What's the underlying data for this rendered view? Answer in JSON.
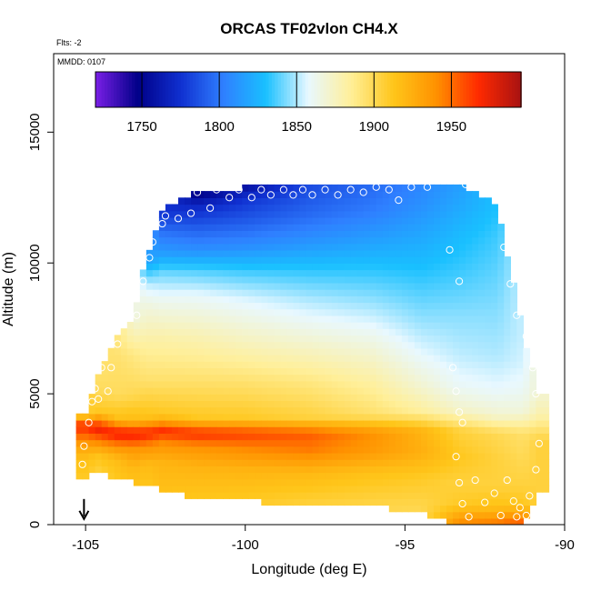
{
  "chart_data": {
    "type": "heatmap",
    "title": "ORCAS TF02vlon CH4.X",
    "xlabel": "Longitude (deg E)",
    "ylabel": "Altitude (m)",
    "xlim": [
      -106,
      -90
    ],
    "ylim": [
      0,
      18000
    ],
    "x_ticks": [
      -105,
      -100,
      -95,
      -90
    ],
    "y_ticks": [
      0,
      5000,
      10000,
      15000
    ],
    "annotations": {
      "flts": "Flts: -2",
      "mmdd": "MMDD: 0107"
    },
    "colorbar": {
      "min": 1720,
      "max": 1995,
      "ticks": [
        1750,
        1800,
        1850,
        1900,
        1950
      ],
      "colors": [
        "#7a1fe6",
        "#000088",
        "#1030d0",
        "#2f7fff",
        "#19c0ff",
        "#e8f8ff",
        "#ffef99",
        "#ffc61a",
        "#ff9200",
        "#ff2a00",
        "#a81212"
      ]
    },
    "grid": false,
    "marker_position": {
      "longitude": -105.05,
      "altitude": 250
    },
    "profile_columns": [
      {
        "lon": -105.0,
        "bottom": 1800,
        "top": 4200,
        "levels": [
          [
            1800,
            1910
          ],
          [
            2500,
            1915
          ],
          [
            3000,
            1930
          ],
          [
            3800,
            1970
          ],
          [
            4200,
            1908
          ]
        ]
      },
      {
        "lon": -104.6,
        "bottom": 2000,
        "top": 5800,
        "levels": [
          [
            2000,
            1905
          ],
          [
            2700,
            1915
          ],
          [
            3200,
            1945
          ],
          [
            3700,
            1975
          ],
          [
            4300,
            1912
          ],
          [
            5200,
            1898
          ],
          [
            5800,
            1895
          ]
        ]
      },
      {
        "lon": -104.0,
        "bottom": 1800,
        "top": 7200,
        "levels": [
          [
            1800,
            1912
          ],
          [
            2500,
            1918
          ],
          [
            3000,
            1940
          ],
          [
            3500,
            1976
          ],
          [
            4100,
            1915
          ],
          [
            5000,
            1898
          ],
          [
            6200,
            1895
          ],
          [
            7200,
            1890
          ]
        ]
      },
      {
        "lon": -103.5,
        "bottom": 1600,
        "top": 8000,
        "levels": [
          [
            1600,
            1915
          ],
          [
            2200,
            1920
          ],
          [
            2900,
            1938
          ],
          [
            3500,
            1975
          ],
          [
            4000,
            1918
          ],
          [
            5000,
            1900
          ],
          [
            6500,
            1890
          ],
          [
            7600,
            1872
          ],
          [
            8000,
            1865
          ]
        ]
      },
      {
        "lon": -103.1,
        "bottom": 1500,
        "top": 10200,
        "levels": [
          [
            1500,
            1912
          ],
          [
            2300,
            1918
          ],
          [
            3000,
            1940
          ],
          [
            3500,
            1972
          ],
          [
            4100,
            1915
          ],
          [
            5500,
            1895
          ],
          [
            7000,
            1882
          ],
          [
            8500,
            1865
          ],
          [
            9200,
            1852
          ],
          [
            10000,
            1820
          ],
          [
            10200,
            1815
          ]
        ]
      },
      {
        "lon": -102.6,
        "bottom": 1300,
        "top": 12000,
        "levels": [
          [
            1300,
            1915
          ],
          [
            2400,
            1922
          ],
          [
            3100,
            1940
          ],
          [
            3600,
            1968
          ],
          [
            4200,
            1912
          ],
          [
            5500,
            1895
          ],
          [
            7200,
            1880
          ],
          [
            8700,
            1860
          ],
          [
            9600,
            1842
          ],
          [
            10400,
            1815
          ],
          [
            11200,
            1798
          ],
          [
            12000,
            1775
          ]
        ]
      },
      {
        "lon": -101.5,
        "bottom": 1000,
        "top": 12700,
        "levels": [
          [
            1000,
            1912
          ],
          [
            2200,
            1922
          ],
          [
            3000,
            1940
          ],
          [
            3500,
            1968
          ],
          [
            4100,
            1911
          ],
          [
            5500,
            1895
          ],
          [
            7200,
            1878
          ],
          [
            8800,
            1858
          ],
          [
            9700,
            1838
          ],
          [
            10500,
            1810
          ],
          [
            11400,
            1790
          ],
          [
            12200,
            1770
          ],
          [
            12700,
            1745
          ]
        ]
      },
      {
        "lon": -100.0,
        "bottom": 900,
        "top": 12900,
        "levels": [
          [
            900,
            1910
          ],
          [
            2100,
            1922
          ],
          [
            2900,
            1942
          ],
          [
            3500,
            1962
          ],
          [
            4100,
            1910
          ],
          [
            5500,
            1894
          ],
          [
            7000,
            1875
          ],
          [
            8700,
            1855
          ],
          [
            9700,
            1835
          ],
          [
            10600,
            1810
          ],
          [
            11600,
            1790
          ],
          [
            12500,
            1775
          ],
          [
            12900,
            1758
          ]
        ]
      },
      {
        "lon": -98.0,
        "bottom": 800,
        "top": 12900,
        "levels": [
          [
            800,
            1905
          ],
          [
            2000,
            1920
          ],
          [
            2800,
            1945
          ],
          [
            3500,
            1955
          ],
          [
            4100,
            1905
          ],
          [
            5500,
            1890
          ],
          [
            7000,
            1870
          ],
          [
            8600,
            1850
          ],
          [
            9800,
            1832
          ],
          [
            10800,
            1812
          ],
          [
            11800,
            1796
          ],
          [
            12900,
            1785
          ]
        ]
      },
      {
        "lon": -96.0,
        "bottom": 700,
        "top": 13000,
        "levels": [
          [
            700,
            1902
          ],
          [
            2000,
            1915
          ],
          [
            2800,
            1935
          ],
          [
            3500,
            1940
          ],
          [
            4200,
            1895
          ],
          [
            5500,
            1882
          ],
          [
            7000,
            1865
          ],
          [
            8500,
            1847
          ],
          [
            9800,
            1832
          ],
          [
            11000,
            1815
          ],
          [
            12000,
            1802
          ],
          [
            13000,
            1795
          ]
        ]
      },
      {
        "lon": -94.5,
        "bottom": 500,
        "top": 13100,
        "levels": [
          [
            500,
            1900
          ],
          [
            1800,
            1910
          ],
          [
            2800,
            1925
          ],
          [
            3600,
            1922
          ],
          [
            4300,
            1885
          ],
          [
            5300,
            1870
          ],
          [
            6500,
            1858
          ],
          [
            8000,
            1845
          ],
          [
            9600,
            1832
          ],
          [
            11000,
            1820
          ],
          [
            12200,
            1810
          ],
          [
            13100,
            1805
          ]
        ]
      },
      {
        "lon": -93.3,
        "bottom": 0,
        "top": 13100,
        "levels": [
          [
            0,
            1945
          ],
          [
            800,
            1910
          ],
          [
            1600,
            1905
          ],
          [
            2600,
            1912
          ],
          [
            3600,
            1905
          ],
          [
            4400,
            1872
          ],
          [
            5300,
            1860
          ],
          [
            6500,
            1852
          ],
          [
            8000,
            1845
          ],
          [
            9600,
            1835
          ],
          [
            11000,
            1828
          ],
          [
            12200,
            1820
          ],
          [
            13100,
            1815
          ]
        ]
      },
      {
        "lon": -92.1,
        "bottom": 0,
        "top": 12200,
        "levels": [
          [
            0,
            1950
          ],
          [
            700,
            1915
          ],
          [
            1500,
            1905
          ],
          [
            2500,
            1905
          ],
          [
            3500,
            1900
          ],
          [
            4200,
            1870
          ],
          [
            5200,
            1858
          ],
          [
            6500,
            1850
          ],
          [
            8000,
            1845
          ],
          [
            9500,
            1840
          ],
          [
            11000,
            1835
          ],
          [
            12200,
            1830
          ]
        ]
      },
      {
        "lon": -91.3,
        "bottom": 0,
        "top": 7300,
        "levels": [
          [
            0,
            1960
          ],
          [
            800,
            1912
          ],
          [
            1500,
            1905
          ],
          [
            2500,
            1900
          ],
          [
            3500,
            1895
          ],
          [
            4300,
            1868
          ],
          [
            5200,
            1860
          ],
          [
            6200,
            1855
          ],
          [
            7300,
            1853
          ]
        ]
      },
      {
        "lon": -90.8,
        "bottom": 1200,
        "top": 5000,
        "levels": [
          [
            1200,
            1905
          ],
          [
            2200,
            1905
          ],
          [
            3200,
            1905
          ],
          [
            4200,
            1880
          ],
          [
            5000,
            1870
          ]
        ]
      }
    ],
    "observations": [
      {
        "lon": -105.1,
        "alt": 2300
      },
      {
        "lon": -105.05,
        "alt": 3000
      },
      {
        "lon": -104.9,
        "alt": 3900
      },
      {
        "lon": -104.8,
        "alt": 4700
      },
      {
        "lon": -104.7,
        "alt": 5200
      },
      {
        "lon": -104.6,
        "alt": 4800
      },
      {
        "lon": -104.5,
        "alt": 6000
      },
      {
        "lon": -104.3,
        "alt": 5100
      },
      {
        "lon": -104.2,
        "alt": 6000
      },
      {
        "lon": -104.3,
        "alt": 7000
      },
      {
        "lon": -104.0,
        "alt": 6900
      },
      {
        "lon": -103.4,
        "alt": 8000
      },
      {
        "lon": -103.2,
        "alt": 9300
      },
      {
        "lon": -103.0,
        "alt": 10200
      },
      {
        "lon": -102.9,
        "alt": 10800
      },
      {
        "lon": -102.6,
        "alt": 11500
      },
      {
        "lon": -102.5,
        "alt": 11800
      },
      {
        "lon": -102.2,
        "alt": 12600
      },
      {
        "lon": -102.1,
        "alt": 11700
      },
      {
        "lon": -101.7,
        "alt": 11900
      },
      {
        "lon": -101.5,
        "alt": 12700
      },
      {
        "lon": -101.1,
        "alt": 12100
      },
      {
        "lon": -100.9,
        "alt": 12800
      },
      {
        "lon": -100.5,
        "alt": 12500
      },
      {
        "lon": -100.2,
        "alt": 12800
      },
      {
        "lon": -99.8,
        "alt": 12500
      },
      {
        "lon": -99.5,
        "alt": 12800
      },
      {
        "lon": -99.2,
        "alt": 12600
      },
      {
        "lon": -98.8,
        "alt": 12800
      },
      {
        "lon": -98.5,
        "alt": 12600
      },
      {
        "lon": -98.2,
        "alt": 12800
      },
      {
        "lon": -97.9,
        "alt": 12600
      },
      {
        "lon": -97.5,
        "alt": 12800
      },
      {
        "lon": -97.1,
        "alt": 12600
      },
      {
        "lon": -96.7,
        "alt": 12800
      },
      {
        "lon": -96.3,
        "alt": 12700
      },
      {
        "lon": -95.9,
        "alt": 12900
      },
      {
        "lon": -95.5,
        "alt": 12800
      },
      {
        "lon": -95.2,
        "alt": 12400
      },
      {
        "lon": -94.8,
        "alt": 12900
      },
      {
        "lon": -94.3,
        "alt": 12900
      },
      {
        "lon": -93.6,
        "alt": 10500
      },
      {
        "lon": -93.3,
        "alt": 9300
      },
      {
        "lon": -93.1,
        "alt": 13000
      },
      {
        "lon": -92.5,
        "alt": 13000
      },
      {
        "lon": -92.1,
        "alt": 12400
      },
      {
        "lon": -91.9,
        "alt": 10600
      },
      {
        "lon": -91.7,
        "alt": 9200
      },
      {
        "lon": -91.5,
        "alt": 8000
      },
      {
        "lon": -91.2,
        "alt": 7200
      },
      {
        "lon": -91.0,
        "alt": 6000
      },
      {
        "lon": -90.9,
        "alt": 5000
      },
      {
        "lon": -90.8,
        "alt": 3100
      },
      {
        "lon": -90.9,
        "alt": 2100
      },
      {
        "lon": -93.5,
        "alt": 6000
      },
      {
        "lon": -93.4,
        "alt": 5100
      },
      {
        "lon": -93.3,
        "alt": 4300
      },
      {
        "lon": -93.2,
        "alt": 3900
      },
      {
        "lon": -93.4,
        "alt": 2600
      },
      {
        "lon": -93.3,
        "alt": 1600
      },
      {
        "lon": -93.2,
        "alt": 800
      },
      {
        "lon": -93.0,
        "alt": 300
      },
      {
        "lon": -92.8,
        "alt": 1700
      },
      {
        "lon": -92.5,
        "alt": 850
      },
      {
        "lon": -92.2,
        "alt": 1200
      },
      {
        "lon": -92.0,
        "alt": 350
      },
      {
        "lon": -91.8,
        "alt": 1700
      },
      {
        "lon": -91.6,
        "alt": 900
      },
      {
        "lon": -91.4,
        "alt": 650
      },
      {
        "lon": -91.2,
        "alt": 350
      },
      {
        "lon": -91.1,
        "alt": 1100
      },
      {
        "lon": -91.5,
        "alt": 300
      }
    ]
  }
}
